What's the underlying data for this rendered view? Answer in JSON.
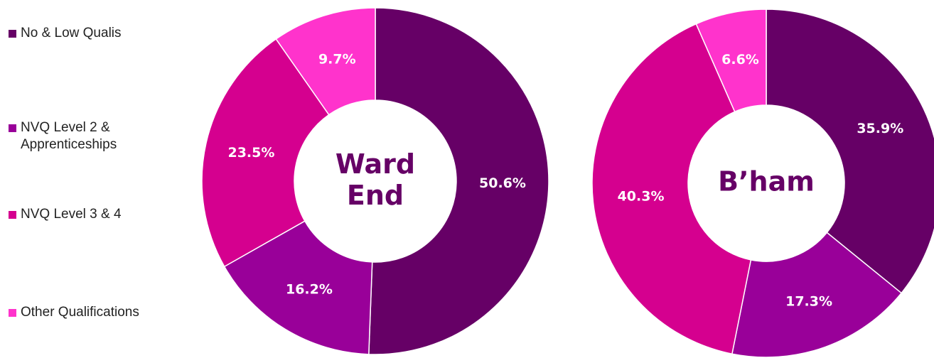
{
  "chart_data": [
    {
      "type": "donut",
      "title": "Ward End",
      "categories": [
        "No & Low Qualis",
        "NVQ Level 2 & Apprenticeships",
        "NVQ Level 3 & 4",
        "Other Qualifications"
      ],
      "colors": [
        "#660066",
        "#990099",
        "#d5008f",
        "#ff33cc"
      ],
      "values": [
        50.6,
        16.2,
        23.5,
        9.7
      ],
      "value_labels": [
        "50.6%",
        "16.2%",
        "23.5%",
        "9.7%"
      ]
    },
    {
      "type": "donut",
      "title": "B’ham",
      "values": [
        35.9,
        17.3,
        40.3,
        6.6
      ],
      "value_labels": [
        "35.9%",
        "17.3%",
        "40.3%",
        "6.6%"
      ]
    }
  ]
}
